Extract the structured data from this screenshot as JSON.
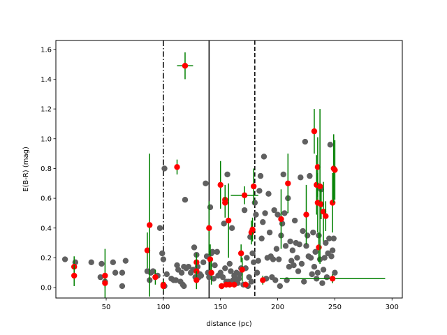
{
  "chart_data": {
    "type": "scatter",
    "title": "",
    "xlabel": "distance (pc)",
    "ylabel": "E(B-R) (mag)",
    "xlim": [
      6,
      309
    ],
    "ylim": [
      -0.07,
      1.66
    ],
    "xticks": [
      50,
      100,
      150,
      200,
      250,
      300
    ],
    "yticks": [
      0.0,
      0.2,
      0.4,
      0.6,
      0.8,
      1.0,
      1.2,
      1.4,
      1.6
    ],
    "xtick_labels": [
      "50",
      "100",
      "150",
      "200",
      "250",
      "300"
    ],
    "ytick_labels": [
      "0.0",
      "0.2",
      "0.4",
      "0.6",
      "0.8",
      "1.0",
      "1.2",
      "1.4",
      "1.6"
    ],
    "grid": false,
    "vlines": [
      {
        "x": 100,
        "style": "dashdot",
        "color": "#000000"
      },
      {
        "x": 140,
        "style": "solid",
        "color": "#000000"
      },
      {
        "x": 180,
        "style": "dashed",
        "color": "#000000"
      }
    ],
    "series": [
      {
        "color": "#606060",
        "values": [
          [
            14,
            0.19
          ],
          [
            23,
            0.17
          ],
          [
            37,
            0.17
          ],
          [
            45,
            0.07
          ],
          [
            46,
            0.16
          ],
          [
            49,
            0.04
          ],
          [
            56,
            0.17
          ],
          [
            58,
            0.1
          ],
          [
            64,
            0.01
          ],
          [
            64,
            0.1
          ],
          [
            67,
            0.18
          ],
          [
            86,
            0.11
          ],
          [
            88,
            0.05
          ],
          [
            89,
            0.1
          ],
          [
            91,
            0.11
          ],
          [
            95,
            0.08
          ],
          [
            97,
            0.4
          ],
          [
            99,
            0.23
          ],
          [
            100,
            0.19
          ],
          [
            101,
            0.01
          ],
          [
            101,
            0.8
          ],
          [
            103,
            0.09
          ],
          [
            107,
            0.06
          ],
          [
            109,
            0.05
          ],
          [
            111,
            0.05
          ],
          [
            112,
            0.15
          ],
          [
            113,
            0.12
          ],
          [
            115,
            0.04
          ],
          [
            116,
            0.1
          ],
          [
            117,
            0.02
          ],
          [
            118,
            0.01
          ],
          [
            118,
            0.14
          ],
          [
            119,
            0.59
          ],
          [
            120,
            0.13
          ],
          [
            122,
            0.14
          ],
          [
            124,
            0.1
          ],
          [
            126,
            0.12
          ],
          [
            127,
            0.27
          ],
          [
            128,
            0.07
          ],
          [
            129,
            0.22
          ],
          [
            130,
            0.14
          ],
          [
            131,
            0.07
          ],
          [
            132,
            0.09
          ],
          [
            133,
            0.08
          ],
          [
            135,
            0.17
          ],
          [
            137,
            0.7
          ],
          [
            138,
            0.21
          ],
          [
            139,
            0.1
          ],
          [
            140,
            0.07
          ],
          [
            141,
            0.54
          ],
          [
            142,
            0.23
          ],
          [
            143,
            0.24
          ],
          [
            144,
            0.06
          ],
          [
            145,
            0.15
          ],
          [
            147,
            0.24
          ],
          [
            148,
            0.08
          ],
          [
            150,
            0.1
          ],
          [
            151,
            0.01
          ],
          [
            152,
            0.07
          ],
          [
            153,
            0.43
          ],
          [
            154,
            0.13
          ],
          [
            155,
            0.04
          ],
          [
            156,
            0.76
          ],
          [
            157,
            0.04
          ],
          [
            158,
            0.16
          ],
          [
            159,
            0.11
          ],
          [
            160,
            0.4
          ],
          [
            161,
            0.05
          ],
          [
            162,
            0.08
          ],
          [
            163,
            0.06
          ],
          [
            164,
            0.1
          ],
          [
            165,
            0.03
          ],
          [
            166,
            0.06
          ],
          [
            167,
            0.09
          ],
          [
            168,
            0.13
          ],
          [
            170,
            0.02
          ],
          [
            171,
            0.52
          ],
          [
            172,
            0.13
          ],
          [
            173,
            0.2
          ],
          [
            174,
            0.01
          ],
          [
            175,
            0.07
          ],
          [
            176,
            0.34
          ],
          [
            177,
            0.04
          ],
          [
            178,
            0.23
          ],
          [
            179,
            0.17
          ],
          [
            180,
            0.57
          ],
          [
            181,
            0.49
          ],
          [
            182,
            0.1
          ],
          [
            183,
            0.18
          ],
          [
            184,
            0.65
          ],
          [
            185,
            0.75
          ],
          [
            186,
            0.33
          ],
          [
            187,
            0.44
          ],
          [
            188,
            0.88
          ],
          [
            189,
            0.5
          ],
          [
            190,
            0.06
          ],
          [
            191,
            0.2
          ],
          [
            192,
            0.63
          ],
          [
            193,
            0.37
          ],
          [
            194,
            0.21
          ],
          [
            195,
            0.07
          ],
          [
            196,
            0.19
          ],
          [
            197,
            0.52
          ],
          [
            198,
            0.05
          ],
          [
            199,
            0.26
          ],
          [
            200,
            0.49
          ],
          [
            201,
            0.19
          ],
          [
            202,
            0.01
          ],
          [
            203,
            0.35
          ],
          [
            204,
            0.43
          ],
          [
            205,
            0.76
          ],
          [
            206,
            0.5
          ],
          [
            207,
            0.28
          ],
          [
            208,
            0.05
          ],
          [
            209,
            0.6
          ],
          [
            210,
            0.14
          ],
          [
            211,
            0.31
          ],
          [
            212,
            0.18
          ],
          [
            213,
            0.25
          ],
          [
            214,
            0.15
          ],
          [
            215,
            0.45
          ],
          [
            216,
            0.3
          ],
          [
            217,
            0.2
          ],
          [
            218,
            0.11
          ],
          [
            219,
            0.29
          ],
          [
            220,
            0.74
          ],
          [
            221,
            0.16
          ],
          [
            222,
            0.38
          ],
          [
            223,
            0.04
          ],
          [
            224,
            0.98
          ],
          [
            225,
            0.28
          ],
          [
            226,
            0.35
          ],
          [
            227,
            0.21
          ],
          [
            228,
            0.75
          ],
          [
            229,
            0.2
          ],
          [
            230,
            0.09
          ],
          [
            231,
            0.37
          ],
          [
            232,
            0.14
          ],
          [
            233,
            0.24
          ],
          [
            234,
            0.06
          ],
          [
            235,
            0.1
          ],
          [
            236,
            0.35
          ],
          [
            237,
            0.19
          ],
          [
            238,
            0.66
          ],
          [
            239,
            0.03
          ],
          [
            240,
            0.12
          ],
          [
            241,
            0.2
          ],
          [
            242,
            0.3
          ],
          [
            243,
            0.07
          ],
          [
            244,
            0.23
          ],
          [
            245,
            0.33
          ],
          [
            246,
            0.96
          ],
          [
            247,
            0.21
          ],
          [
            248,
            0.25
          ],
          [
            249,
            0.33
          ],
          [
            250,
            0.1
          ]
        ]
      },
      {
        "color": "#ff0000",
        "errorbar_color": "#008000",
        "points": [
          {
            "x": 22,
            "y": 0.14,
            "yerr": 0.07
          },
          {
            "x": 22,
            "y": 0.08,
            "yerr": 0.07
          },
          {
            "x": 49,
            "y": 0.08,
            "yerr": 0.18
          },
          {
            "x": 49,
            "y": 0.03,
            "yerr": 0.03
          },
          {
            "x": 86,
            "y": 0.25,
            "yerr": 0.12
          },
          {
            "x": 88,
            "y": 0.42,
            "yerr": 0.48
          },
          {
            "x": 93,
            "y": 0.07,
            "yerr": 0.05
          },
          {
            "x": 100,
            "y": 0.02,
            "yerr": 0.03
          },
          {
            "x": 100,
            "y": 0.01,
            "yerr": 0.03
          },
          {
            "x": 112,
            "y": 0.81,
            "yerr": 0.05
          },
          {
            "x": 119,
            "y": 1.49,
            "xerr": 7,
            "yerr": 0.09
          },
          {
            "x": 129,
            "y": 0.17,
            "yerr": 0.06
          },
          {
            "x": 129,
            "y": 0.11,
            "yerr": 0.08
          },
          {
            "x": 129,
            "y": 0.05,
            "yerr": 0.06
          },
          {
            "x": 140,
            "y": 0.4,
            "yerr": 0.18
          },
          {
            "x": 141,
            "y": 0.19,
            "yerr": 0.1
          },
          {
            "x": 142,
            "y": 0.1,
            "yerr": 0.08
          },
          {
            "x": 150,
            "y": 0.69,
            "yerr": 0.16
          },
          {
            "x": 151,
            "y": 0.01,
            "yerr": 0.02
          },
          {
            "x": 154,
            "y": 0.59,
            "yerr": 0.1
          },
          {
            "x": 154,
            "y": 0.57,
            "yerr": 0.1
          },
          {
            "x": 155,
            "y": 0.02,
            "yerr": 0.02
          },
          {
            "x": 157,
            "y": 0.45,
            "yerr": 0.25
          },
          {
            "x": 158,
            "y": 0.02,
            "yerr": 0.02
          },
          {
            "x": 162,
            "y": 0.02,
            "yerr": 0.02
          },
          {
            "x": 168,
            "y": 0.23,
            "yerr": 0.06
          },
          {
            "x": 169,
            "y": 0.12,
            "yerr": 0.08
          },
          {
            "x": 171,
            "y": 0.62,
            "xerr": 12,
            "yerr": 0.06
          },
          {
            "x": 172,
            "y": 0.02,
            "yerr": 0.02
          },
          {
            "x": 177,
            "y": 0.37,
            "yerr": 0.08
          },
          {
            "x": 178,
            "y": 0.39,
            "yerr": 0.08
          },
          {
            "x": 179,
            "y": 0.68,
            "yerr": 0.12
          },
          {
            "x": 187,
            "y": 0.05,
            "yerr": 0.03
          },
          {
            "x": 203,
            "y": 0.46,
            "yerr": 0.2
          },
          {
            "x": 209,
            "y": 0.7,
            "yerr": 0.2
          },
          {
            "x": 225,
            "y": 0.49,
            "yerr": 0.2
          },
          {
            "x": 232,
            "y": 1.05,
            "yerr": 0.15
          },
          {
            "x": 234,
            "y": 0.69,
            "yerr": 0.2
          },
          {
            "x": 235,
            "y": 0.57,
            "yerr": 0.2
          },
          {
            "x": 235,
            "y": 0.81,
            "yerr": 0.2
          },
          {
            "x": 236,
            "y": 0.27,
            "yerr": 0.1
          },
          {
            "x": 237,
            "y": 0.68,
            "yerr": 0.52
          },
          {
            "x": 238,
            "y": 0.56,
            "yerr": 0.1
          },
          {
            "x": 240,
            "y": 0.51,
            "yerr": 0.2
          },
          {
            "x": 242,
            "y": 0.48,
            "yerr": 0.1
          },
          {
            "x": 248,
            "y": 0.57,
            "yerr": 0.2
          },
          {
            "x": 249,
            "y": 0.8,
            "yerr": 0.23
          },
          {
            "x": 250,
            "y": 0.79,
            "yerr": 0.2
          },
          {
            "x": 248,
            "y": 0.06,
            "xerr": 46,
            "yerr": 0.03
          }
        ]
      }
    ]
  }
}
